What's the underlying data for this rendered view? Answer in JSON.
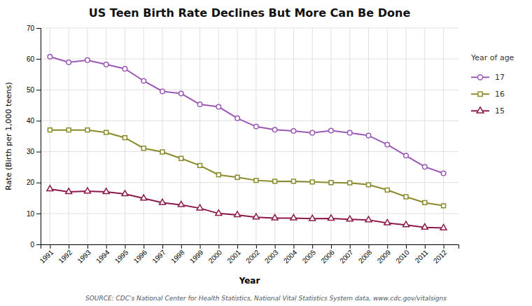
{
  "chart_data": {
    "type": "line",
    "title": "US Teen Birth Rate Declines But More Can Be Done",
    "x_label": "Year",
    "y_label": "Rate (Birth per 1,000 teens)",
    "legend_title": "Year of age",
    "source": "SOURCE: CDC's National Center for Health Statistics, National Vital Statistics System data, www.cdc.gov/vitalsigns",
    "x": [
      1991,
      1992,
      1993,
      1994,
      1995,
      1996,
      1997,
      1998,
      1999,
      2000,
      2001,
      2002,
      2003,
      2004,
      2005,
      2006,
      2007,
      2008,
      2009,
      2010,
      2011,
      2012
    ],
    "xlim": [
      1990.5,
      2012.8
    ],
    "xticks": [
      1991,
      1992,
      1993,
      1994,
      1995,
      1996,
      1997,
      1998,
      1999,
      2000,
      2001,
      2002,
      2003,
      2004,
      2005,
      2006,
      2007,
      2008,
      2009,
      2010,
      2011,
      2012
    ],
    "ylim": [
      0,
      70
    ],
    "yticks": [
      0,
      10,
      20,
      30,
      40,
      50,
      60,
      70
    ],
    "grid": true,
    "legend": "right",
    "series": [
      {
        "name": "17",
        "color": "#9b59b6",
        "marker": "circle",
        "values": [
          60.7,
          58.9,
          59.6,
          58.2,
          56.8,
          52.9,
          49.5,
          48.8,
          45.3,
          44.5,
          40.8,
          38.1,
          37.1,
          36.7,
          36.1,
          36.8,
          36.1,
          35.2,
          32.3,
          28.7,
          25.1,
          23.0
        ]
      },
      {
        "name": "16",
        "color": "#8a8a2a",
        "marker": "square",
        "values": [
          37.0,
          37.0,
          37.0,
          36.2,
          34.5,
          31.1,
          29.9,
          27.8,
          25.5,
          22.5,
          21.7,
          20.7,
          20.4,
          20.4,
          20.2,
          20.0,
          19.9,
          19.3,
          17.6,
          15.4,
          13.5,
          12.5
        ]
      },
      {
        "name": "15",
        "color": "#8b1a4a",
        "marker": "triangle",
        "values": [
          17.9,
          17.0,
          17.2,
          17.0,
          16.3,
          14.9,
          13.5,
          12.8,
          11.7,
          10.0,
          9.5,
          8.8,
          8.5,
          8.5,
          8.3,
          8.4,
          8.1,
          7.9,
          6.9,
          6.3,
          5.5,
          5.3
        ]
      }
    ]
  }
}
